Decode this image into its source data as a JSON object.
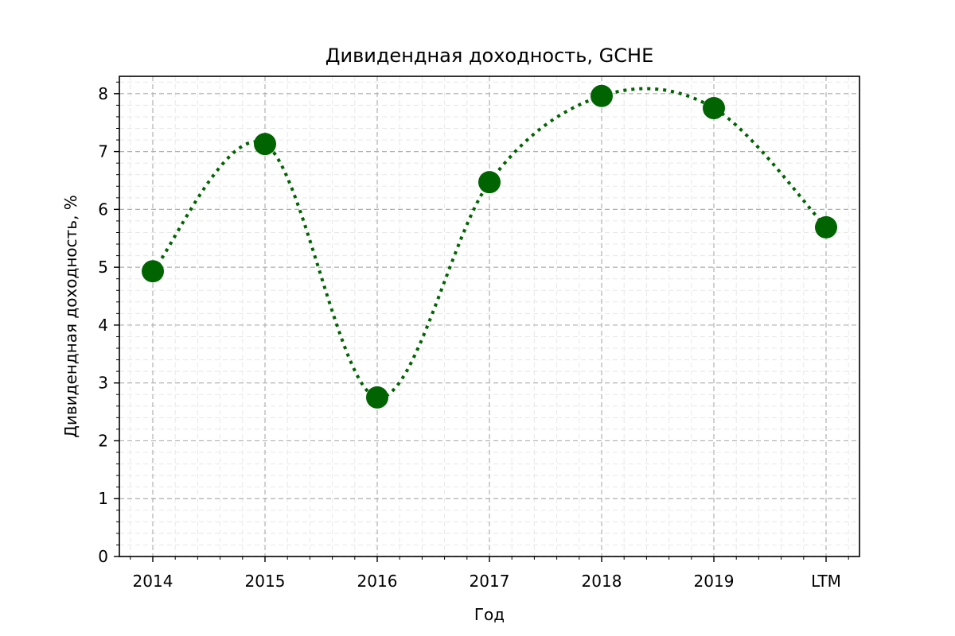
{
  "chart_data": {
    "type": "line",
    "title": "Дивидендная доходность, GCHE",
    "xlabel": "Год",
    "ylabel": "Дивидендная доходность, %",
    "categories": [
      "2014",
      "2015",
      "2016",
      "2017",
      "2018",
      "2019",
      "LTM"
    ],
    "series": [
      {
        "values": [
          4.93,
          7.13,
          2.75,
          6.47,
          7.96,
          7.75,
          5.69
        ],
        "line_style": "dotted smooth",
        "marker": "circle",
        "color": "#006400"
      }
    ],
    "yticks": [
      0,
      1,
      2,
      3,
      4,
      5,
      6,
      7,
      8
    ],
    "ylim": [
      0,
      8.3
    ],
    "grid": {
      "major": true,
      "minor": true,
      "style": "dashed"
    },
    "legend": "none"
  }
}
